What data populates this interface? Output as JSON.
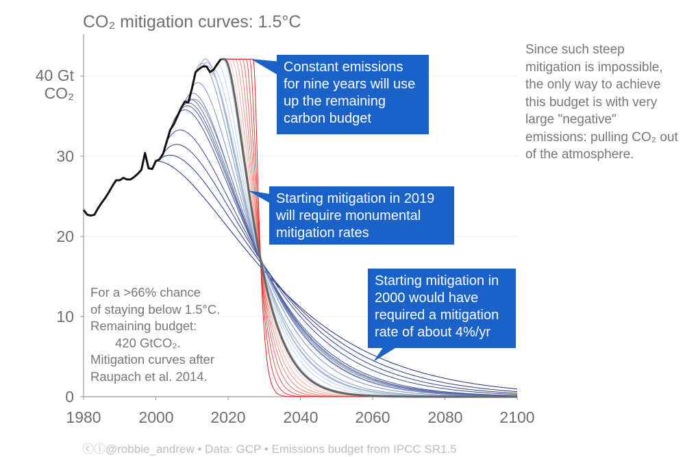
{
  "chart_data": {
    "type": "line",
    "title": "CO₂ mitigation curves: 1.5°C",
    "ylabel": "Gt CO₂",
    "xlim": [
      1980,
      2100
    ],
    "ylim": [
      0,
      45
    ],
    "x_ticks": [
      "1980",
      "2000",
      "2020",
      "2040",
      "2060",
      "2080",
      "2100"
    ],
    "y_ticks": [
      "0",
      "10",
      "20",
      "30",
      "40"
    ],
    "y_top_label": [
      "40 Gt",
      "CO₂"
    ],
    "grid": "horizontal",
    "remaining_budget_gtco2": 420,
    "historical": {
      "years": [
        1980,
        1981,
        1982,
        1983,
        1984,
        1985,
        1986,
        1987,
        1988,
        1989,
        1990,
        1991,
        1992,
        1993,
        1994,
        1995,
        1996,
        1997,
        1998,
        1999,
        2000,
        2001,
        2002,
        2003,
        2004,
        2005,
        2006,
        2007,
        2008,
        2009,
        2010,
        2011,
        2012,
        2013,
        2014,
        2015,
        2016,
        2017,
        2018
      ],
      "values": [
        23.3,
        22.7,
        22.6,
        22.7,
        23.5,
        24.2,
        24.8,
        25.5,
        26.3,
        27.0,
        27.0,
        27.3,
        27.1,
        27.1,
        27.4,
        27.8,
        28.3,
        30.4,
        28.5,
        28.4,
        29.4,
        29.6,
        30.3,
        31.8,
        33.3,
        34.0,
        35.0,
        36.0,
        36.8,
        36.7,
        38.5,
        40.5,
        40.9,
        41.2,
        41.2,
        40.5,
        40.8,
        41.5,
        42.1
      ]
    },
    "mitigation_start_years_blue": [
      2000,
      2001,
      2002,
      2003,
      2004,
      2005,
      2006,
      2007,
      2008,
      2009,
      2010,
      2011,
      2012,
      2013,
      2014,
      2015,
      2016,
      2017,
      2018
    ],
    "mitigation_start_years_red": [
      2020,
      2021,
      2022,
      2023,
      2024,
      2025,
      2026,
      2027
    ],
    "highlight_start_year": 2019,
    "colors": {
      "historical": "#111111",
      "highlight": "#666666",
      "blue_dark": "#1b2a80",
      "blue_light": "#c7def0",
      "red_light": "#f8c6b8",
      "red_dark": "#e0211d",
      "grid": "#eeeeee",
      "axis": "#999999"
    }
  },
  "callouts": {
    "constant": "Constant emissions for nine years will use up the remaining carbon budget",
    "start2019": "Starting mitigation in 2019 will require monumental mitigation rates",
    "start2000": "Starting mitigation in 2000 would have required a mitigation rate of about 4%/yr",
    "color": "#1a62c8"
  },
  "side_note": "Since such steep mitigation is impossible, the only way to achieve this budget is with very large \"negative\" emissions: pulling CO₂ out of the atmosphere.",
  "left_note": {
    "line1": "For a >66% chance",
    "line2": "of staying below 1.5°C.",
    "line3": "Remaining budget:",
    "line4": "420 GtCO₂.",
    "line5": "Mitigation curves after",
    "line6": "Raupach et al. 2014."
  },
  "footer": {
    "license": "ⓒⓘ",
    "author": "@robbie_andrew",
    "sep": "•",
    "data": "Data: GCP",
    "budget": "Emissions budget from IPCC SR1.5"
  }
}
